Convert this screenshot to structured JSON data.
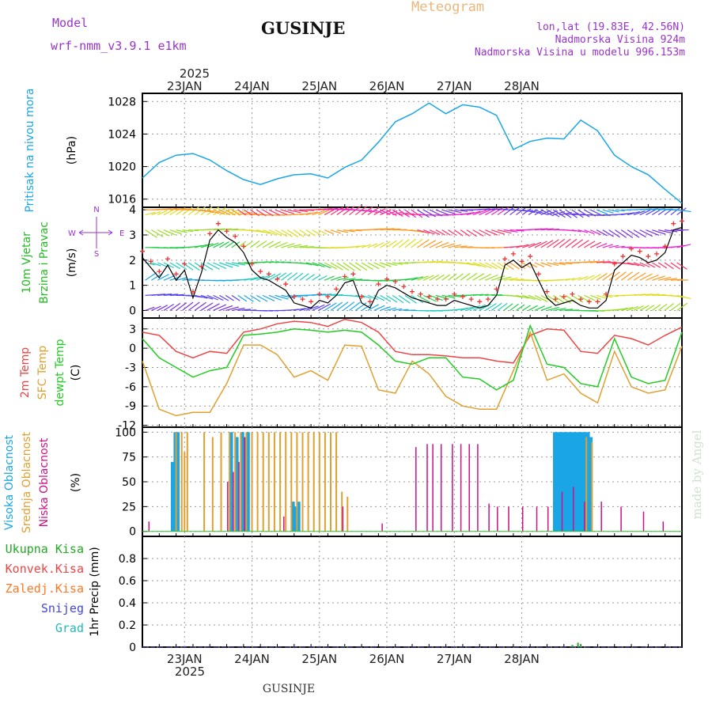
{
  "header": {
    "model_label": "Model",
    "model_name": "wrf-nmm_v3.9.1 e1km",
    "station": "GUSINJE",
    "title": "Meteogram",
    "lonlat": "lon,lat (19.83E, 42.56N)",
    "altitude": "Nadmorska Visina 924m",
    "model_altitude": "Nadmorska Visina u modelu 996.153m",
    "footer_station": "GUSINJE",
    "credit": "made by Angel",
    "top_year": "2025",
    "bottom_year": "2025"
  },
  "colors": {
    "pressure": "#1aa6e6",
    "temp2m": "#ee4444",
    "sfc_temp": "#e0a030",
    "dewpt": "#22cc22",
    "high_cloud": "#1aa6e6",
    "mid_cloud": "#e0a030",
    "low_cloud": "#cc1188",
    "total_precip": "#22aa22",
    "conv_precip": "#ee4444",
    "frozen_precip": "#ff7722",
    "snow": "#4444dd",
    "hail": "#22bbbb",
    "wind_title": "#22bb22",
    "purple": "#9933cc",
    "gust_marker": "#ee3333"
  },
  "chart_data": [
    {
      "type": "line",
      "panel": "pressure",
      "ylabel_colored": "Pritisak na nivou mora",
      "unit": "(hPa)",
      "x_ticks": [
        "23JAN",
        "24JAN",
        "25JAN",
        "26JAN",
        "27JAN",
        "28JAN"
      ],
      "ylim": [
        1015,
        1029
      ],
      "yticks": [
        1016,
        1020,
        1024,
        1028
      ],
      "grid": true,
      "series": [
        {
          "x": [
            0,
            6,
            12,
            18,
            24,
            30,
            36,
            42,
            48,
            54,
            60,
            66,
            72,
            78,
            84,
            90,
            96,
            102,
            108,
            114,
            120,
            126,
            132,
            138,
            144,
            150,
            156,
            162,
            168,
            174,
            180,
            186,
            192
          ],
          "values": [
            1018.6,
            1020.5,
            1021.4,
            1021.6,
            1020.8,
            1019.5,
            1018.4,
            1017.8,
            1018.5,
            1019.0,
            1019.1,
            1018.6,
            1019.9,
            1020.8,
            1023.0,
            1025.5,
            1026.5,
            1027.8,
            1026.5,
            1027.6,
            1027.3,
            1026.3,
            1022.1,
            1023.1,
            1023.5,
            1023.4,
            1025.7,
            1024.4,
            1021.4,
            1020.0,
            1019.0,
            1017.2,
            1015.5
          ]
        }
      ]
    },
    {
      "type": "line",
      "panel": "wind",
      "ylabel_colored": [
        "10m Vjetar",
        "Brzina i Pravac"
      ],
      "unit": "(m/s)",
      "compass": [
        "N",
        "W",
        "E",
        "S"
      ],
      "ylim": [
        -0.3,
        4.1
      ],
      "yticks": [
        0,
        1,
        2,
        3,
        4
      ],
      "grid": true,
      "series": [
        {
          "name": "speed",
          "x": [
            0,
            3,
            6,
            9,
            12,
            15,
            18,
            21,
            24,
            27,
            30,
            33,
            36,
            39,
            42,
            45,
            48,
            51,
            54,
            57,
            60,
            63,
            66,
            69,
            72,
            75,
            78,
            81,
            84,
            87,
            90,
            93,
            96,
            99,
            102,
            105,
            108,
            111,
            114,
            117,
            120,
            123,
            126,
            129,
            132,
            135,
            138,
            141,
            144,
            147,
            150,
            153,
            156,
            159,
            162,
            165,
            168,
            171,
            174,
            177,
            180,
            183,
            186,
            189,
            192
          ],
          "values": [
            2.1,
            1.7,
            1.3,
            1.8,
            1.2,
            1.6,
            0.5,
            1.5,
            2.8,
            3.2,
            2.9,
            2.7,
            2.3,
            1.6,
            1.3,
            1.2,
            1.0,
            0.8,
            0.3,
            0.2,
            0.1,
            0.4,
            0.3,
            0.6,
            1.1,
            1.2,
            0.3,
            0.1,
            0.8,
            1.0,
            0.9,
            0.7,
            0.5,
            0.4,
            0.3,
            0.2,
            0.2,
            0.4,
            0.3,
            0.2,
            0.1,
            0.2,
            0.6,
            1.8,
            2.0,
            1.7,
            1.9,
            1.2,
            0.5,
            0.2,
            0.3,
            0.4,
            0.2,
            0.1,
            0.1,
            0.4,
            1.6,
            1.9,
            2.2,
            2.1,
            1.9,
            2.0,
            2.3,
            3.2,
            3.3
          ]
        }
      ]
    },
    {
      "type": "line",
      "panel": "temperature",
      "ylabel_colored": [
        "2m Temp",
        "SFC Temp",
        "dewpt Temp"
      ],
      "unit": "(C)",
      "ylim": [
        -12.3,
        4.7
      ],
      "yticks": [
        -12,
        -9,
        -6,
        -3,
        0,
        3
      ],
      "grid": true,
      "series": [
        {
          "name": "2m Temp",
          "x": [
            0,
            6,
            12,
            18,
            24,
            30,
            36,
            42,
            48,
            54,
            60,
            66,
            72,
            78,
            84,
            90,
            96,
            102,
            108,
            114,
            120,
            126,
            132,
            138,
            144,
            150,
            156,
            162,
            168,
            174,
            180,
            186,
            192
          ],
          "values": [
            2.5,
            2.0,
            -0.5,
            -1.5,
            -0.5,
            -0.8,
            2.5,
            3.0,
            3.8,
            4.2,
            4.0,
            3.4,
            4.5,
            4.0,
            2.5,
            -0.5,
            -1.0,
            -1.0,
            -1.2,
            -1.5,
            -1.5,
            -2.0,
            -2.3,
            2.0,
            3.0,
            2.8,
            -0.5,
            -0.8,
            2.0,
            1.5,
            0.5,
            2.0,
            3.3
          ]
        },
        {
          "name": "SFC Temp",
          "x": [
            0,
            6,
            12,
            18,
            24,
            30,
            36,
            42,
            48,
            54,
            60,
            66,
            72,
            78,
            84,
            90,
            96,
            102,
            108,
            114,
            120,
            126,
            132,
            138,
            144,
            150,
            156,
            162,
            168,
            174,
            180,
            186,
            192
          ],
          "values": [
            -2.0,
            -9.5,
            -10.5,
            -10.0,
            -10.0,
            -5.5,
            0.5,
            0.5,
            -1.0,
            -4.5,
            -3.5,
            -5.0,
            0.5,
            0.3,
            -6.5,
            -7.0,
            -2.0,
            -4.0,
            -7.5,
            -9.0,
            -9.5,
            -9.5,
            -3.5,
            2.5,
            -5.0,
            -4.0,
            -7.0,
            -8.5,
            -0.5,
            -6.0,
            -7.0,
            -6.5,
            0.3
          ]
        },
        {
          "name": "dewpt Temp",
          "x": [
            0,
            6,
            12,
            18,
            24,
            30,
            36,
            42,
            48,
            54,
            60,
            66,
            72,
            78,
            84,
            90,
            96,
            102,
            108,
            114,
            120,
            126,
            132,
            138,
            144,
            150,
            156,
            162,
            168,
            174,
            180,
            186,
            192
          ],
          "values": [
            1.5,
            -1.5,
            -3.0,
            -4.5,
            -3.5,
            -3.0,
            2.0,
            2.2,
            2.5,
            3.0,
            2.8,
            2.5,
            2.8,
            2.5,
            0.5,
            -2.0,
            -2.5,
            -1.5,
            -1.5,
            -4.5,
            -4.8,
            -6.5,
            -5.0,
            3.5,
            -2.5,
            -3.0,
            -5.5,
            -6.0,
            1.5,
            -4.5,
            -5.5,
            -5.0,
            2.5
          ]
        }
      ]
    },
    {
      "type": "bar",
      "panel": "clouds",
      "ylabel_colored": [
        "Visoka Oblacnost",
        "Srednja Oblacnost",
        "Niska Oblacnost"
      ],
      "unit": "(%)",
      "ylim": [
        -5,
        105
      ],
      "yticks": [
        0,
        25,
        50,
        75,
        100
      ],
      "grid": true,
      "series": [
        {
          "name": "Visoka Oblacnost",
          "x": [
            11,
            12,
            13,
            32,
            34,
            36,
            37,
            38,
            54,
            55,
            56,
            147,
            148,
            149,
            150,
            151,
            152,
            153,
            154,
            155,
            156,
            157,
            158,
            159,
            160
          ],
          "values": [
            70,
            100,
            100,
            100,
            95,
            100,
            95,
            100,
            30,
            25,
            30,
            100,
            100,
            100,
            100,
            100,
            100,
            100,
            100,
            100,
            100,
            100,
            100,
            100,
            95
          ]
        },
        {
          "name": "Srednja Oblacnost",
          "x": [
            12,
            14,
            15,
            16,
            22,
            25,
            28,
            31,
            33,
            35,
            37,
            39,
            41,
            43,
            45,
            47,
            49,
            51,
            53,
            55,
            57,
            59,
            61,
            63,
            65,
            67,
            69,
            71,
            73,
            158,
            160
          ],
          "values": [
            100,
            100,
            80,
            100,
            100,
            95,
            100,
            100,
            100,
            100,
            100,
            100,
            100,
            100,
            100,
            100,
            100,
            100,
            100,
            100,
            100,
            100,
            100,
            100,
            100,
            100,
            100,
            40,
            35,
            95,
            90
          ]
        },
        {
          "name": "Niska Oblacnost",
          "x": [
            2,
            30,
            32,
            34,
            36,
            50,
            71,
            85,
            97,
            101,
            103,
            106,
            110,
            113,
            116,
            119,
            123,
            126,
            130,
            135,
            140,
            144,
            149,
            153,
            157,
            163,
            170,
            178,
            185
          ],
          "values": [
            10,
            50,
            60,
            70,
            95,
            15,
            25,
            8,
            85,
            88,
            88,
            88,
            88,
            88,
            88,
            88,
            28,
            25,
            25,
            25,
            25,
            25,
            40,
            45,
            30,
            30,
            25,
            20,
            10
          ]
        }
      ]
    },
    {
      "type": "bar",
      "panel": "precip",
      "ylabel": "1hr Precip (mm)",
      "legend": [
        "Ukupna Kisa",
        "Konvek.Kisa",
        "Zaledj.Kisa",
        "Snijeg",
        "Grad"
      ],
      "ylim": [
        0,
        1.0
      ],
      "yticks": [
        0,
        0.2,
        0.4,
        0.6,
        0.8
      ],
      "grid": true,
      "series": [
        {
          "name": "Ukupna Kisa",
          "x": [
            72,
            153,
            155,
            156
          ],
          "values": [
            0.005,
            0.02,
            0.04,
            0.02
          ]
        }
      ]
    }
  ]
}
